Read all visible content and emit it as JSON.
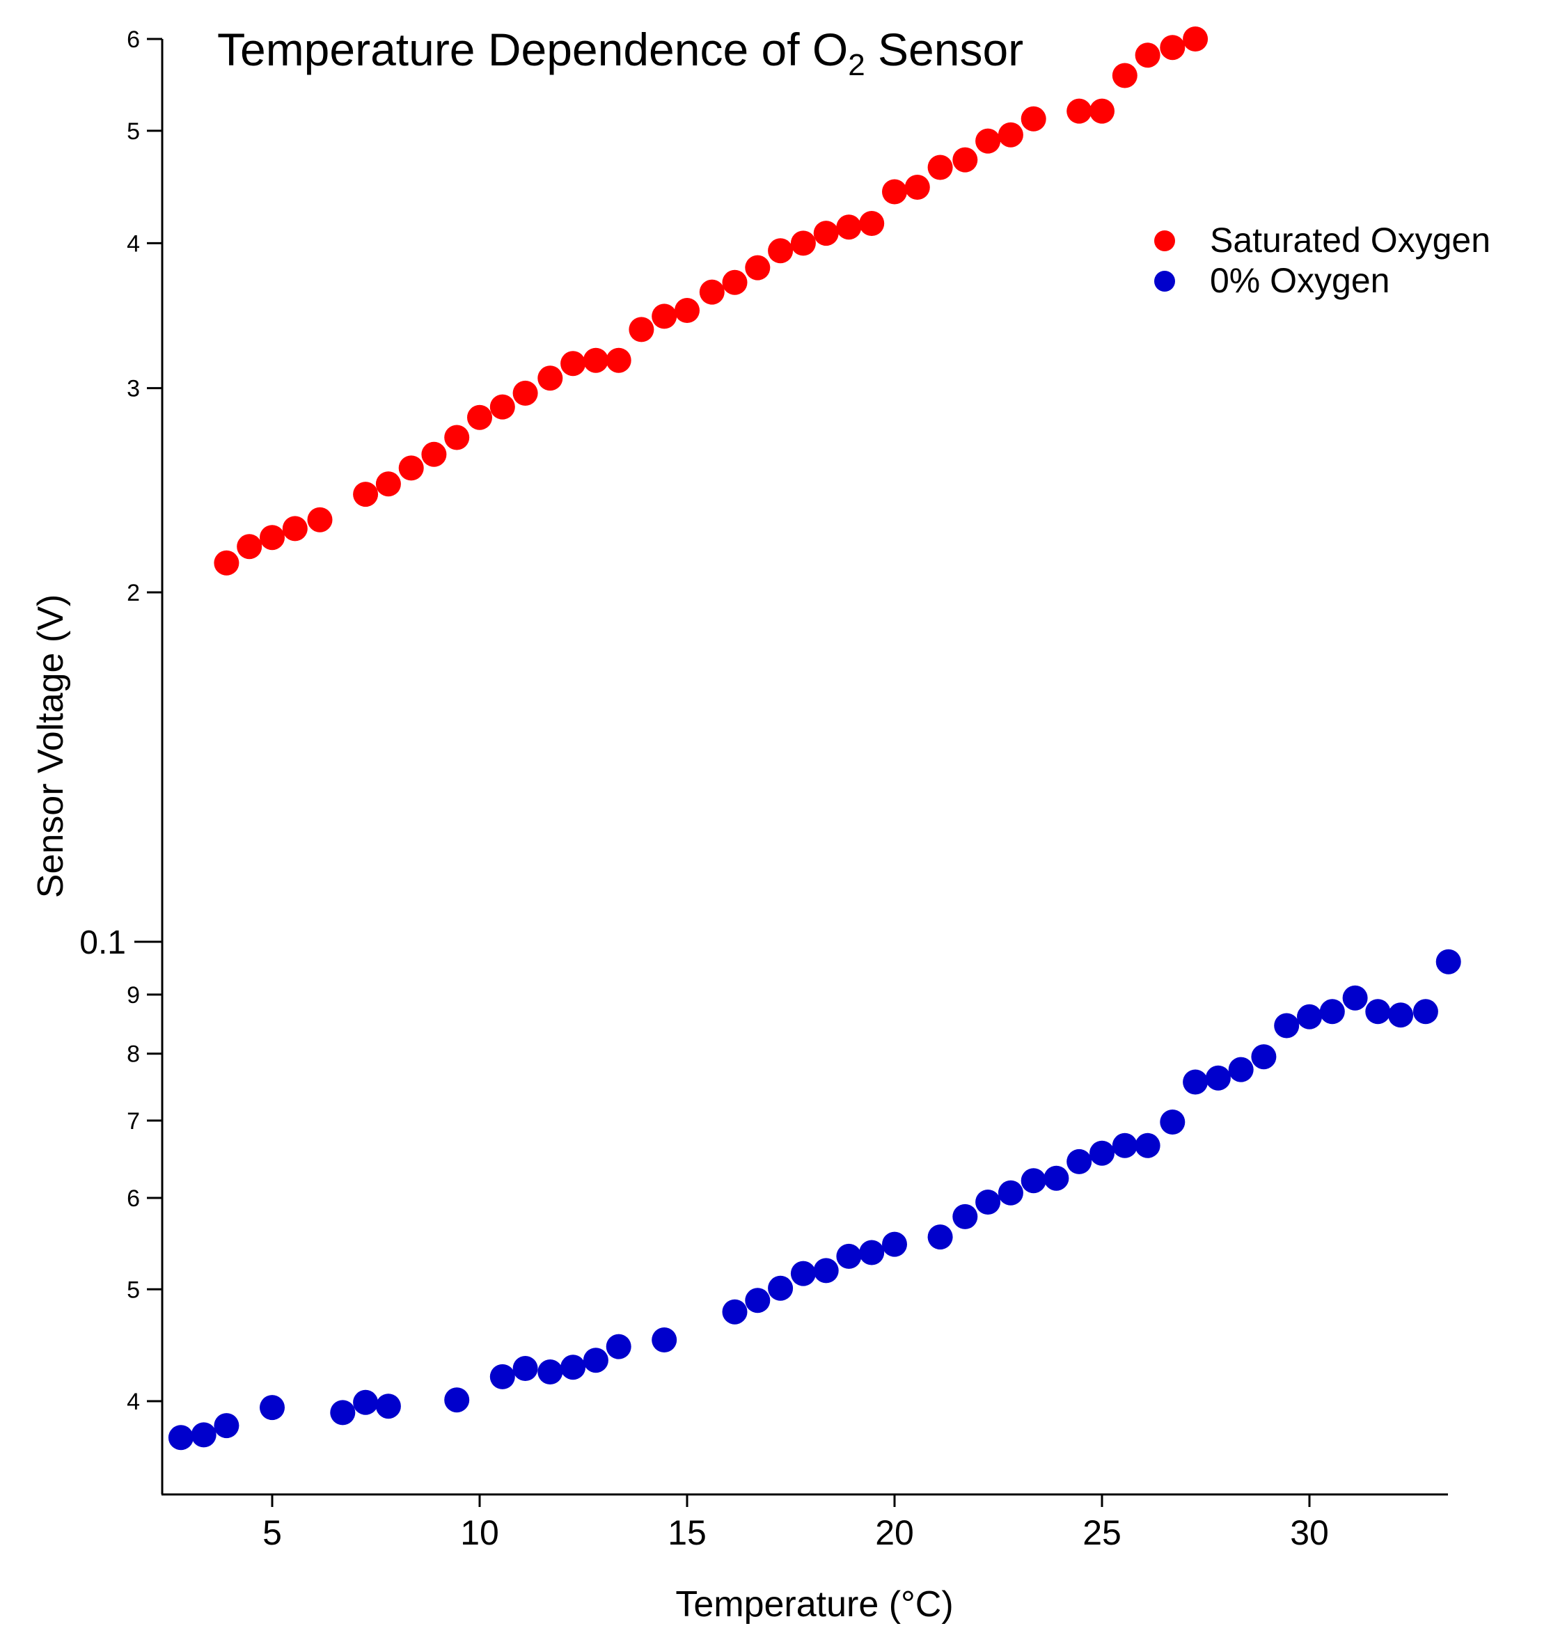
{
  "chart_data": {
    "type": "scatter",
    "title": "Temperature Dependence of O",
    "title_subscript": "2",
    "title_suffix": " Sensor",
    "xlabel": "Temperature (°C)",
    "ylabel": "Sensor Voltage (V)",
    "xlim": [
      0.5,
      33.5
    ],
    "x_ticks": [
      5,
      10,
      15,
      20,
      25,
      30
    ],
    "x_tick_labels": [
      "5",
      "10",
      "15",
      "20",
      "25",
      "30"
    ],
    "y_scale": "log",
    "y_segments": {
      "upper_ylim": [
        1.3,
        6
      ],
      "upper_ticks": [
        2,
        3,
        4,
        5,
        6
      ],
      "upper_tick_labels": [
        "2",
        "3",
        "4",
        "5",
        "6"
      ],
      "lower_ylim": [
        0.0365,
        0.1
      ],
      "lower_ticks": [
        0.04,
        0.05,
        0.06,
        0.07,
        0.08,
        0.09,
        0.1
      ],
      "lower_tick_labels": [
        "4",
        "5",
        "6",
        "7",
        "8",
        "9",
        "0.1"
      ]
    },
    "grid": false,
    "legend_position": "top-right",
    "series": [
      {
        "name": "Saturated Oxygen",
        "color": "#ff0000",
        "x": [
          3.9,
          4.45,
          5.0,
          5.55,
          6.15,
          7.25,
          7.8,
          8.35,
          8.9,
          9.45,
          10.0,
          10.55,
          11.1,
          11.7,
          12.25,
          12.8,
          13.35,
          13.9,
          14.45,
          15.0,
          15.6,
          16.15,
          16.7,
          17.25,
          17.8,
          18.35,
          18.9,
          19.45,
          20.0,
          20.55,
          21.1,
          21.7,
          22.25,
          22.8,
          23.35,
          24.45,
          25.0,
          25.55,
          26.1,
          26.7,
          27.25
        ],
        "y": [
          2.12,
          2.19,
          2.23,
          2.27,
          2.31,
          2.43,
          2.48,
          2.56,
          2.63,
          2.72,
          2.83,
          2.89,
          2.97,
          3.06,
          3.15,
          3.17,
          3.17,
          3.37,
          3.46,
          3.5,
          3.63,
          3.7,
          3.81,
          3.94,
          4.0,
          4.08,
          4.13,
          4.16,
          4.43,
          4.47,
          4.65,
          4.72,
          4.9,
          4.96,
          5.12,
          5.2,
          5.2,
          5.58,
          5.81,
          5.9,
          6.0
        ]
      },
      {
        "name": "0% Oxygen",
        "color": "#0000cc",
        "x": [
          2.8,
          3.35,
          3.9,
          5.0,
          6.7,
          7.25,
          7.8,
          9.45,
          10.55,
          11.1,
          11.7,
          12.25,
          12.8,
          13.35,
          14.45,
          16.15,
          16.7,
          17.25,
          17.8,
          18.35,
          18.9,
          19.45,
          20.0,
          21.1,
          21.7,
          22.25,
          22.8,
          23.35,
          23.9,
          24.45,
          25.0,
          25.55,
          26.1,
          26.7,
          27.25,
          27.8,
          28.35,
          28.9,
          29.45,
          30.0,
          30.55,
          31.1,
          31.65,
          32.2,
          32.8,
          33.35
        ],
        "y": [
          0.0372,
          0.0374,
          0.0381,
          0.0395,
          0.0391,
          0.0399,
          0.0396,
          0.0401,
          0.042,
          0.0427,
          0.0424,
          0.0428,
          0.0434,
          0.0446,
          0.0452,
          0.0478,
          0.0489,
          0.0501,
          0.0516,
          0.0519,
          0.0534,
          0.0538,
          0.0547,
          0.0555,
          0.0578,
          0.0595,
          0.0606,
          0.0621,
          0.0624,
          0.0645,
          0.0656,
          0.0666,
          0.0666,
          0.0698,
          0.0756,
          0.0762,
          0.0775,
          0.0795,
          0.0846,
          0.0861,
          0.087,
          0.0894,
          0.087,
          0.0864,
          0.087,
          0.0961
        ]
      }
    ]
  }
}
